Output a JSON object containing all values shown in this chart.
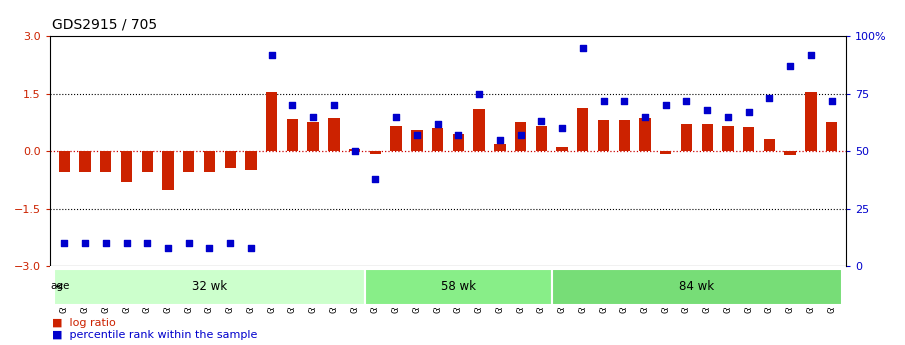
{
  "title": "GDS2915 / 705",
  "samples": [
    "GSM97277",
    "GSM97278",
    "GSM97279",
    "GSM97280",
    "GSM97281",
    "GSM97282",
    "GSM97283",
    "GSM97284",
    "GSM97285",
    "GSM97286",
    "GSM97287",
    "GSM97288",
    "GSM97289",
    "GSM97290",
    "GSM97291",
    "GSM97292",
    "GSM97293",
    "GSM97294",
    "GSM97295",
    "GSM97296",
    "GSM97297",
    "GSM97298",
    "GSM97299",
    "GSM97300",
    "GSM97301",
    "GSM97302",
    "GSM97303",
    "GSM97304",
    "GSM97305",
    "GSM97306",
    "GSM97307",
    "GSM97308",
    "GSM97309",
    "GSM97310",
    "GSM97311",
    "GSM97312",
    "GSM97313",
    "GSM97314"
  ],
  "log_ratio": [
    -0.55,
    -0.55,
    -0.55,
    -0.8,
    -0.55,
    -1.0,
    -0.55,
    -0.55,
    -0.45,
    -0.5,
    1.55,
    0.85,
    0.75,
    0.88,
    0.05,
    -0.07,
    0.65,
    0.55,
    0.6,
    0.45,
    1.1,
    0.18,
    0.75,
    0.65,
    0.12,
    1.12,
    0.82,
    0.82,
    0.88,
    -0.07,
    0.72,
    0.72,
    0.65,
    0.62,
    0.32,
    -0.1,
    1.55,
    0.75
  ],
  "percentile": [
    10,
    10,
    10,
    10,
    10,
    8,
    10,
    8,
    10,
    8,
    92,
    70,
    65,
    70,
    50,
    38,
    65,
    57,
    62,
    57,
    75,
    55,
    57,
    63,
    60,
    95,
    72,
    72,
    65,
    70,
    72,
    68,
    65,
    67,
    73,
    87,
    92,
    72
  ],
  "groups": [
    {
      "label": "32 wk",
      "start": 0,
      "end": 15,
      "color": "#ccffcc"
    },
    {
      "label": "58 wk",
      "start": 15,
      "end": 24,
      "color": "#88ee88"
    },
    {
      "label": "84 wk",
      "start": 24,
      "end": 38,
      "color": "#77dd77"
    }
  ],
  "bar_color": "#cc2200",
  "scatter_color": "#0000cc",
  "ylim": [
    -3,
    3
  ],
  "y2lim": [
    0,
    100
  ],
  "yticks_left": [
    -3,
    -1.5,
    0,
    1.5,
    3
  ],
  "yticks_right": [
    0,
    25,
    50,
    75,
    100
  ],
  "ytick_labels_right": [
    "0",
    "25",
    "50",
    "75",
    "100%"
  ],
  "zero_line_color": "#cc0000",
  "bg_color": "#ffffff",
  "title_fontsize": 10,
  "tick_fontsize": 6.5,
  "bar_width": 0.55,
  "scatter_size": 20
}
